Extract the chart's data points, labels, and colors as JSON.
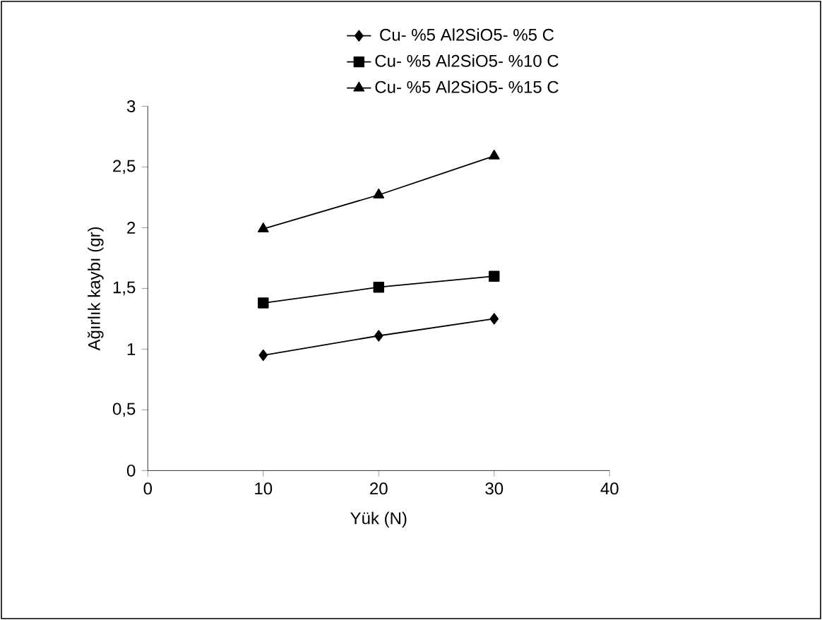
{
  "chart_data": {
    "type": "line",
    "xlabel": "Yük (N)",
    "ylabel": "Ağırlık kaybı (gr)",
    "x": [
      10,
      20,
      30
    ],
    "series": [
      {
        "name": "Cu- %5 Al2SiO5- %5 C",
        "color": "#000000",
        "marker": "diamond",
        "values": [
          0.95,
          1.11,
          1.25
        ]
      },
      {
        "name": "Cu- %5 Al2SiO5- %10 C",
        "color": "#000000",
        "marker": "square",
        "values": [
          1.38,
          1.51,
          1.6
        ]
      },
      {
        "name": "Cu- %5 Al2SiO5- %15 C",
        "color": "#000000",
        "marker": "triangle",
        "values": [
          1.99,
          2.27,
          2.59
        ]
      }
    ],
    "xlim": [
      0,
      40
    ],
    "xticks": [
      0,
      10,
      20,
      30,
      40
    ],
    "ylim": [
      0,
      3
    ],
    "yticks": [
      0,
      {
        "value": 0.5,
        "label": "0,5"
      },
      1,
      {
        "value": 1.5,
        "label": "1,5"
      },
      2,
      {
        "value": 2.5,
        "label": "2,5"
      },
      3
    ],
    "grid": false,
    "legend": "top right",
    "line_style": "solid"
  }
}
